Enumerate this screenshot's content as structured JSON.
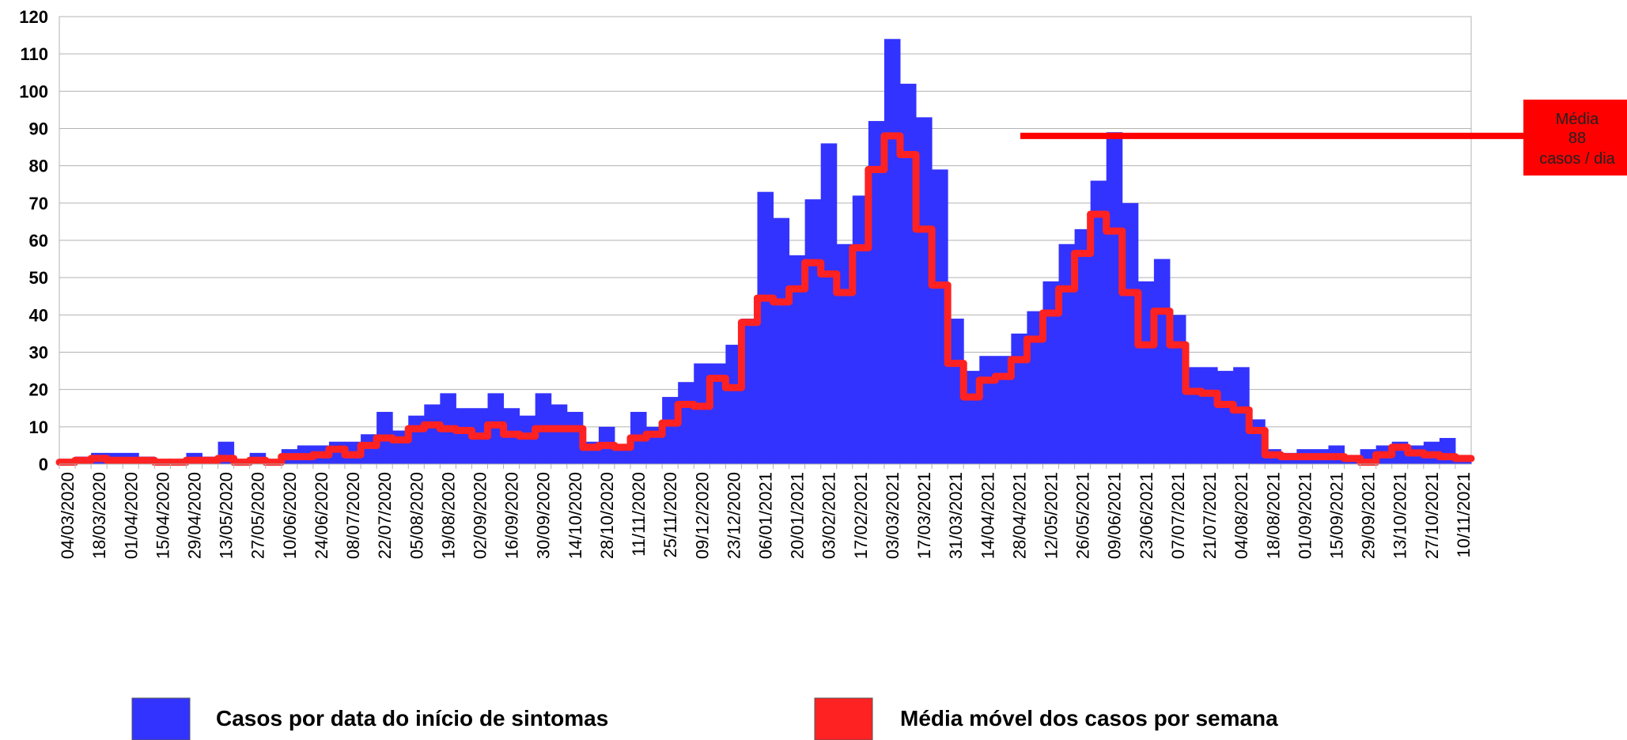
{
  "chart_data": {
    "type": "bar",
    "categories": [
      "04/03/2020",
      null,
      "18/03/2020",
      null,
      "01/04/2020",
      null,
      "15/04/2020",
      null,
      "29/04/2020",
      null,
      "13/05/2020",
      null,
      "27/05/2020",
      null,
      "10/06/2020",
      null,
      "24/06/2020",
      null,
      "08/07/2020",
      null,
      "22/07/2020",
      null,
      "05/08/2020",
      null,
      "19/08/2020",
      null,
      "02/09/2020",
      null,
      "16/09/2020",
      null,
      "30/09/2020",
      null,
      "14/10/2020",
      null,
      "28/10/2020",
      null,
      "11/11/2020",
      null,
      "25/11/2020",
      null,
      "09/12/2020",
      null,
      "23/12/2020",
      null,
      "06/01/2021",
      null,
      "20/01/2021",
      null,
      "03/02/2021",
      null,
      "17/02/2021",
      null,
      "03/03/2021",
      null,
      "17/03/2021",
      null,
      "31/03/2021",
      null,
      "14/04/2021",
      null,
      "28/04/2021",
      null,
      "12/05/2021",
      null,
      "26/05/2021",
      null,
      "09/06/2021",
      null,
      "23/06/2021",
      null,
      "07/07/2021",
      null,
      "21/07/2021",
      null,
      "04/08/2021",
      null,
      "18/08/2021",
      null,
      "01/09/2021",
      null,
      "15/09/2021",
      null,
      "29/09/2021",
      null,
      "13/10/2021",
      null,
      "27/10/2021",
      null,
      "10/11/2021"
    ],
    "series": [
      {
        "name": "Casos por data do início de sintomas",
        "color": "#3333ff",
        "values": [
          1,
          2,
          3,
          3,
          3,
          2,
          1,
          1,
          3,
          2,
          6,
          1,
          3,
          1,
          4,
          5,
          5,
          6,
          6,
          8,
          14,
          9,
          13,
          16,
          19,
          15,
          15,
          19,
          15,
          13,
          19,
          16,
          14,
          6,
          10,
          5,
          14,
          10,
          18,
          22,
          27,
          27,
          32,
          39,
          73,
          66,
          56,
          71,
          86,
          59,
          72,
          92,
          114,
          102,
          93,
          79,
          39,
          25,
          29,
          29,
          35,
          41,
          49,
          59,
          63,
          76,
          89,
          70,
          49,
          55,
          40,
          26,
          26,
          25,
          26,
          12,
          4,
          3,
          4,
          4,
          5,
          2,
          4,
          5,
          6,
          5,
          6,
          7,
          1
        ]
      },
      {
        "name": "Média móvel dos casos por semana",
        "color": "#ff2222",
        "values": [
          0.5,
          1,
          1.5,
          1,
          1,
          1,
          0.5,
          0.5,
          1,
          1,
          1.5,
          0.5,
          1,
          0.5,
          2,
          2,
          2.5,
          4,
          2.5,
          5,
          7,
          6.5,
          9.5,
          10.5,
          9.5,
          9,
          7.5,
          10.5,
          8,
          7.5,
          9.5,
          9.5,
          9.5,
          4.5,
          5,
          4.5,
          7,
          8,
          11,
          16,
          15.5,
          23,
          20.5,
          38,
          44.5,
          43.5,
          47,
          54,
          51,
          46,
          58,
          79,
          88,
          83,
          63,
          48,
          27,
          18,
          22.5,
          23.5,
          28,
          33.5,
          40.5,
          47,
          56.5,
          67,
          62.5,
          46,
          32,
          41,
          32,
          19.5,
          19,
          16,
          14.5,
          9,
          2.5,
          2,
          2,
          2,
          2,
          1.5,
          0.5,
          2.5,
          4.5,
          3,
          2.5,
          2,
          1.5
        ]
      }
    ],
    "ylim": [
      0,
      120
    ],
    "yticks": [
      0,
      10,
      20,
      30,
      40,
      50,
      60,
      70,
      80,
      90,
      100,
      110,
      120
    ],
    "grid": true,
    "annotation": {
      "title": "Média",
      "value": 88,
      "unit": "casos / dia",
      "color": "#ff0000"
    }
  }
}
